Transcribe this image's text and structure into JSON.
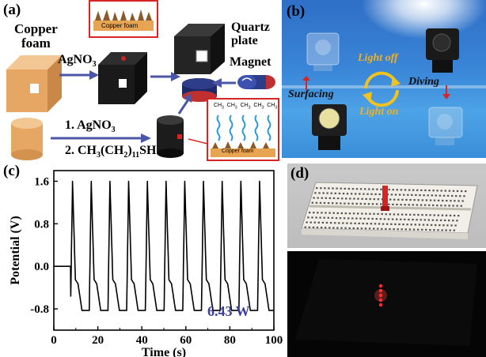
{
  "panel_a": {
    "label": "(a)",
    "copper_foam_label_line1": "Copper",
    "copper_foam_label_line2": "foam",
    "agno3_label": "AgNO",
    "agno3_sub": "3",
    "inset_top_text": "Copper foam",
    "quartz_label_line1": "Quartz",
    "quartz_label_line2": "plate",
    "magnet_label": "Magnet",
    "step1": "1. AgNO",
    "step1_sub": "3",
    "step2_pre": "2. CH",
    "step2_sub1": "3",
    "step2_mid": "(CH",
    "step2_sub2": "2",
    "step2_post": ")",
    "step2_sub3": "11",
    "step2_end": "SH",
    "inset_bottom_text": "Copper foam",
    "chain_label": "CH",
    "chain_sub": "3"
  },
  "panel_b": {
    "label": "(b)",
    "light_off": "Light off",
    "light_on": "Light on",
    "surfacing": "Surfacing",
    "diving": "Diving",
    "colors": {
      "text_orange": "#f2b01e",
      "bg_blue": "#3a86d8"
    }
  },
  "panel_c": {
    "label": "(c)",
    "power_label": "6.43 W"
  },
  "panel_d": {
    "label": "(d)"
  },
  "chart_data": {
    "type": "line",
    "xlabel": "Time (s)",
    "ylabel": "Potential (V)",
    "xlim": [
      0,
      100
    ],
    "ylim": [
      -1.2,
      1.8
    ],
    "xticks": [
      0,
      20,
      40,
      60,
      80,
      100
    ],
    "yticks": [
      1.6,
      0.8,
      0.0,
      -0.8
    ],
    "ytick_labels": [
      "1.6",
      "0.8",
      "0.0",
      "-0.8"
    ],
    "grid": false,
    "series": [
      {
        "color": "#000000",
        "peak_times": [
          8.5,
          17,
          25.5,
          34,
          42.5,
          51,
          59.5,
          68,
          76.5,
          85,
          93.5
        ],
        "onset_time": 7.6,
        "peak_value": 1.6,
        "trough_value": -0.83,
        "shoulder_value": -0.25,
        "period": 8.5,
        "start_value": 0.0
      }
    ]
  }
}
